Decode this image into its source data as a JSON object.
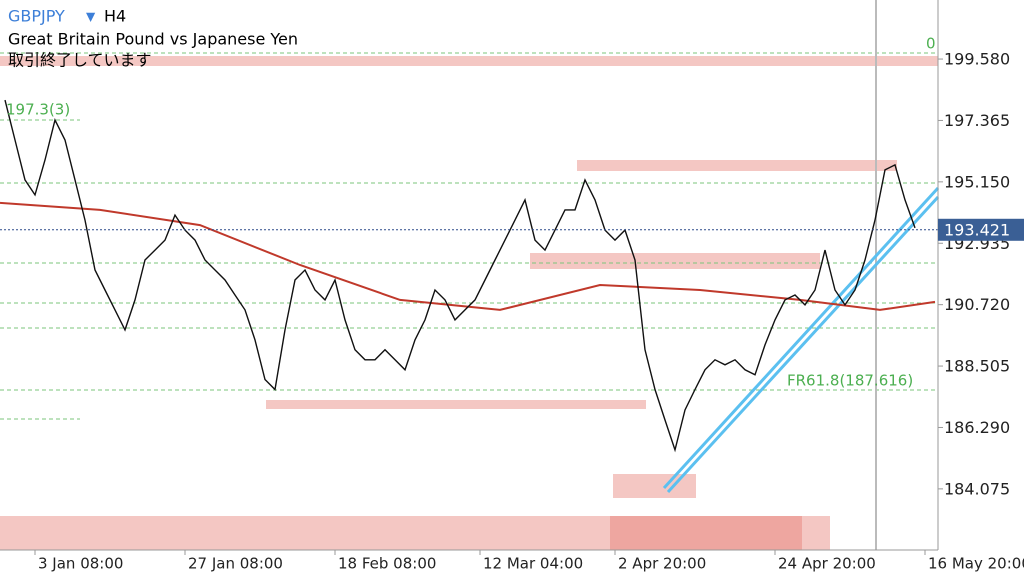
{
  "header": {
    "symbol": "GBPJPY",
    "timeframe": "H4",
    "description": "Great Britain Pound vs Japanese Yen",
    "status": "取引終了しています"
  },
  "chart_data": {
    "type": "line",
    "color": "#111111",
    "x": [
      0,
      1,
      2,
      3,
      4,
      5,
      6,
      7,
      8,
      9,
      10,
      11,
      12,
      13,
      14,
      15,
      16,
      17,
      18,
      19,
      20,
      21,
      22,
      23,
      24,
      25,
      26,
      27,
      28,
      29,
      30,
      31,
      32,
      33,
      34,
      35,
      36,
      37,
      38,
      39,
      40,
      41,
      42,
      43,
      44,
      45,
      46,
      47,
      48,
      49,
      50,
      51,
      52,
      53,
      54,
      55,
      56,
      57,
      58,
      59,
      60,
      61,
      62,
      63,
      64,
      65,
      66,
      67,
      68,
      69,
      70,
      71,
      72,
      73,
      74,
      75,
      76,
      77,
      78,
      79,
      80,
      81,
      82,
      83,
      84,
      85,
      86,
      87,
      88,
      89,
      90,
      91
    ],
    "values": [
      198.1,
      196.66,
      195.22,
      194.68,
      195.94,
      197.38,
      196.66,
      195.22,
      193.77,
      191.97,
      191.25,
      190.53,
      189.81,
      190.89,
      192.33,
      192.69,
      193.05,
      193.95,
      193.41,
      193.05,
      192.33,
      191.97,
      191.61,
      191.07,
      190.53,
      189.45,
      188.02,
      187.66,
      189.81,
      191.61,
      191.97,
      191.25,
      190.89,
      191.61,
      190.17,
      189.09,
      188.73,
      188.73,
      189.09,
      188.73,
      188.37,
      189.45,
      190.17,
      191.25,
      190.89,
      190.17,
      190.53,
      190.89,
      191.61,
      192.33,
      193.05,
      193.77,
      194.5,
      193.05,
      192.69,
      193.41,
      194.14,
      194.14,
      195.22,
      194.5,
      193.41,
      193.05,
      193.41,
      192.33,
      189.09,
      187.66,
      186.56,
      185.48,
      186.92,
      187.66,
      188.37,
      188.73,
      188.55,
      188.73,
      188.37,
      188.19,
      189.27,
      190.17,
      190.89,
      191.07,
      190.71,
      191.25,
      192.69,
      191.25,
      190.71,
      191.25,
      192.33,
      193.77,
      195.58,
      195.76,
      194.5,
      193.49
    ],
    "overlays": [
      {
        "color": "#c0392b",
        "x": [
          -0.5,
          9.5,
          19.5,
          29.5,
          39.5,
          49.5,
          59.5,
          69.5,
          79.5,
          87.5,
          93
        ],
        "values": [
          194.39,
          194.14,
          193.59,
          192.15,
          190.89,
          190.53,
          191.43,
          191.25,
          190.89,
          190.53,
          190.82
        ]
      }
    ],
    "last_price": 193.421,
    "annotations": [
      "0",
      "197.3(3)",
      "FR61.8(187.616)"
    ],
    "xlim": [
      -0.5,
      93.3
    ],
    "ylim": [
      181.87,
      201.71
    ],
    "yticks": [
      {
        "value": 199.58,
        "label": "199.580"
      },
      197.365,
      {
        "value": 195.15,
        "label": "195.150"
      },
      192.935,
      {
        "value": 190.72,
        "label": "190.720"
      },
      188.505,
      {
        "value": 186.29,
        "label": "186.290"
      },
      184.075
    ],
    "xticks": [
      {
        "value": 3,
        "label": "3 Jan 08:00"
      },
      {
        "value": 18,
        "label": "27 Jan 08:00"
      },
      {
        "value": 33,
        "label": "18 Feb 08:00"
      },
      {
        "value": 47.5,
        "label": "12 Mar 04:00"
      },
      {
        "value": 61,
        "label": "2 Apr 20:00"
      },
      {
        "value": 77,
        "label": "24 Apr 20:00"
      },
      {
        "value": 92,
        "label": "16 May 20:00"
      }
    ]
  }
}
